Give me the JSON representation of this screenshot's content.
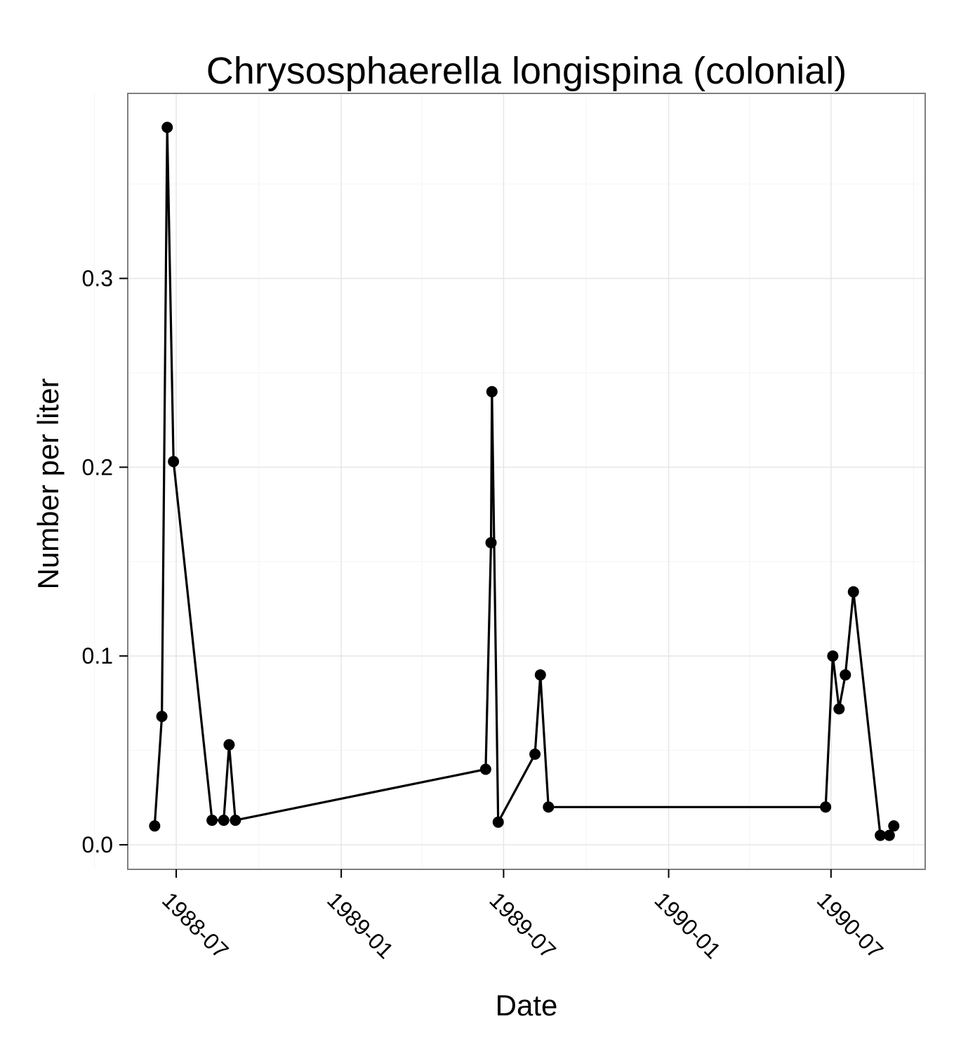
{
  "chart_data": {
    "type": "line",
    "title": "Chrysosphaerella longispina (colonial)",
    "xlabel": "Date",
    "ylabel": "Number per liter",
    "xlim": [
      "1988-05-08",
      "1990-10-14"
    ],
    "ylim": [
      -0.013,
      0.398
    ],
    "y_ticks": [
      0.0,
      0.1,
      0.2,
      0.3
    ],
    "y_tick_labels": [
      "0.0",
      "0.1",
      "0.2",
      "0.3"
    ],
    "y_minor_ticks": [
      0.05,
      0.15,
      0.25,
      0.35
    ],
    "x_ticks": [
      "1988-07-01",
      "1989-01-01",
      "1989-07-01",
      "1990-01-01",
      "1990-07-01"
    ],
    "x_tick_labels": [
      "1988-07",
      "1989-01",
      "1989-07",
      "1990-01",
      "1990-07"
    ],
    "x_minor_ticks": [
      "1988-04-01",
      "1988-10-01",
      "1989-04-01",
      "1989-10-01",
      "1990-04-01",
      "1990-10-01"
    ],
    "grid": true,
    "x_tick_label_rotation_deg": 45,
    "series": [
      {
        "name": "",
        "color": "#000000",
        "x": [
          "1988-06-07",
          "1988-06-15",
          "1988-06-21",
          "1988-06-28",
          "1988-08-10",
          "1988-08-23",
          "1988-08-29",
          "1988-09-05",
          "1989-06-11",
          "1989-06-17",
          "1989-06-18",
          "1989-06-25",
          "1989-08-05",
          "1989-08-11",
          "1989-08-20",
          "1990-06-25",
          "1990-07-03",
          "1990-07-10",
          "1990-07-17",
          "1990-07-26",
          "1990-08-25",
          "1990-09-04",
          "1990-09-09"
        ],
        "y": [
          0.01,
          0.068,
          0.38,
          0.203,
          0.013,
          0.013,
          0.053,
          0.013,
          0.04,
          0.16,
          0.24,
          0.012,
          0.048,
          0.09,
          0.02,
          0.02,
          0.1,
          0.072,
          0.09,
          0.134,
          0.005,
          0.005,
          0.01
        ]
      }
    ]
  }
}
